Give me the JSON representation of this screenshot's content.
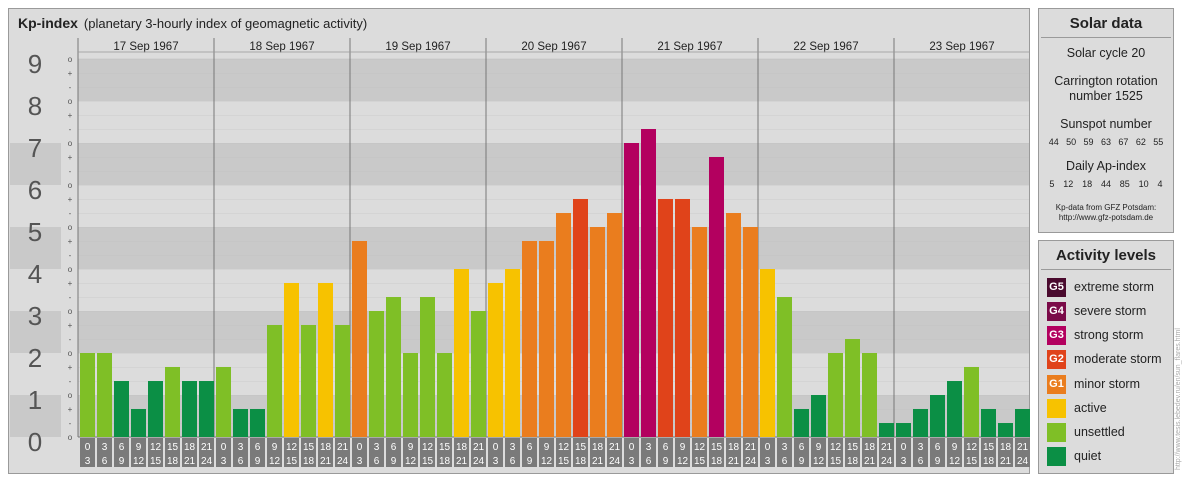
{
  "header": {
    "title": "Kp-index",
    "subtitle": "(planetary 3-hourly index of geomagnetic activity)"
  },
  "chart_data": {
    "type": "bar",
    "ylim": [
      0,
      9
    ],
    "yticks": [
      "0",
      "1",
      "2",
      "3",
      "4",
      "5",
      "6",
      "7",
      "8",
      "9"
    ],
    "minor_marks": [
      "o",
      "-",
      "+"
    ],
    "days": [
      "17 Sep 1967",
      "18 Sep 1967",
      "19 Sep 1967",
      "20 Sep 1967",
      "21 Sep 1967",
      "22 Sep 1967",
      "23 Sep 1967"
    ],
    "interval_top": [
      "0",
      "3",
      "6",
      "9",
      "12",
      "15",
      "18",
      "21"
    ],
    "interval_bottom": [
      "3",
      "6",
      "9",
      "12",
      "15",
      "18",
      "21",
      "24"
    ],
    "values": [
      [
        2.0,
        2.0,
        1.333,
        0.667,
        1.333,
        1.667,
        1.333,
        1.333
      ],
      [
        1.667,
        0.667,
        0.667,
        2.667,
        3.667,
        2.667,
        3.667,
        2.667
      ],
      [
        4.667,
        3.0,
        3.333,
        2.0,
        3.333,
        2.0,
        4.0,
        3.0
      ],
      [
        3.667,
        4.0,
        4.667,
        4.667,
        5.333,
        5.667,
        5.0,
        5.333
      ],
      [
        7.0,
        7.333,
        5.667,
        5.667,
        5.0,
        6.667,
        5.333,
        5.0
      ],
      [
        4.0,
        3.333,
        0.667,
        1.0,
        2.0,
        2.333,
        2.0,
        0.333
      ],
      [
        0.333,
        0.667,
        1.0,
        1.333,
        1.667,
        0.667,
        0.333,
        0.667
      ]
    ]
  },
  "solar": {
    "title": "Solar data",
    "cycle": "Solar cycle 20",
    "carrington_1": "Carrington rotation",
    "carrington_2": "number 1525",
    "sunspot_label": "Sunspot number",
    "sunspot_values": [
      "44",
      "50",
      "59",
      "63",
      "67",
      "62",
      "55"
    ],
    "ap_label": "Daily Ap-index",
    "ap_values": [
      "5",
      "12",
      "18",
      "44",
      "85",
      "10",
      "4"
    ],
    "source_1": "Kp-data from GFZ Potsdam:",
    "source_2": "http://www.gfz-potsdam.de"
  },
  "levels": {
    "title": "Activity levels",
    "items": [
      {
        "code": "G5",
        "label": "extreme storm",
        "color": "#4a0a2e"
      },
      {
        "code": "G4",
        "label": "severe storm",
        "color": "#7a0a48"
      },
      {
        "code": "G3",
        "label": "strong storm",
        "color": "#b3005f"
      },
      {
        "code": "G2",
        "label": "moderate storm",
        "color": "#e0431a"
      },
      {
        "code": "G1",
        "label": "minor storm",
        "color": "#ea7d1e"
      },
      {
        "code": "",
        "label": "active",
        "color": "#f7c200"
      },
      {
        "code": "",
        "label": "unsettled",
        "color": "#7fbf26"
      },
      {
        "code": "",
        "label": "quiet",
        "color": "#0b8f45"
      }
    ]
  },
  "watermark": "http://www.tesis.lebedev.ru/en/sun_flares.html"
}
